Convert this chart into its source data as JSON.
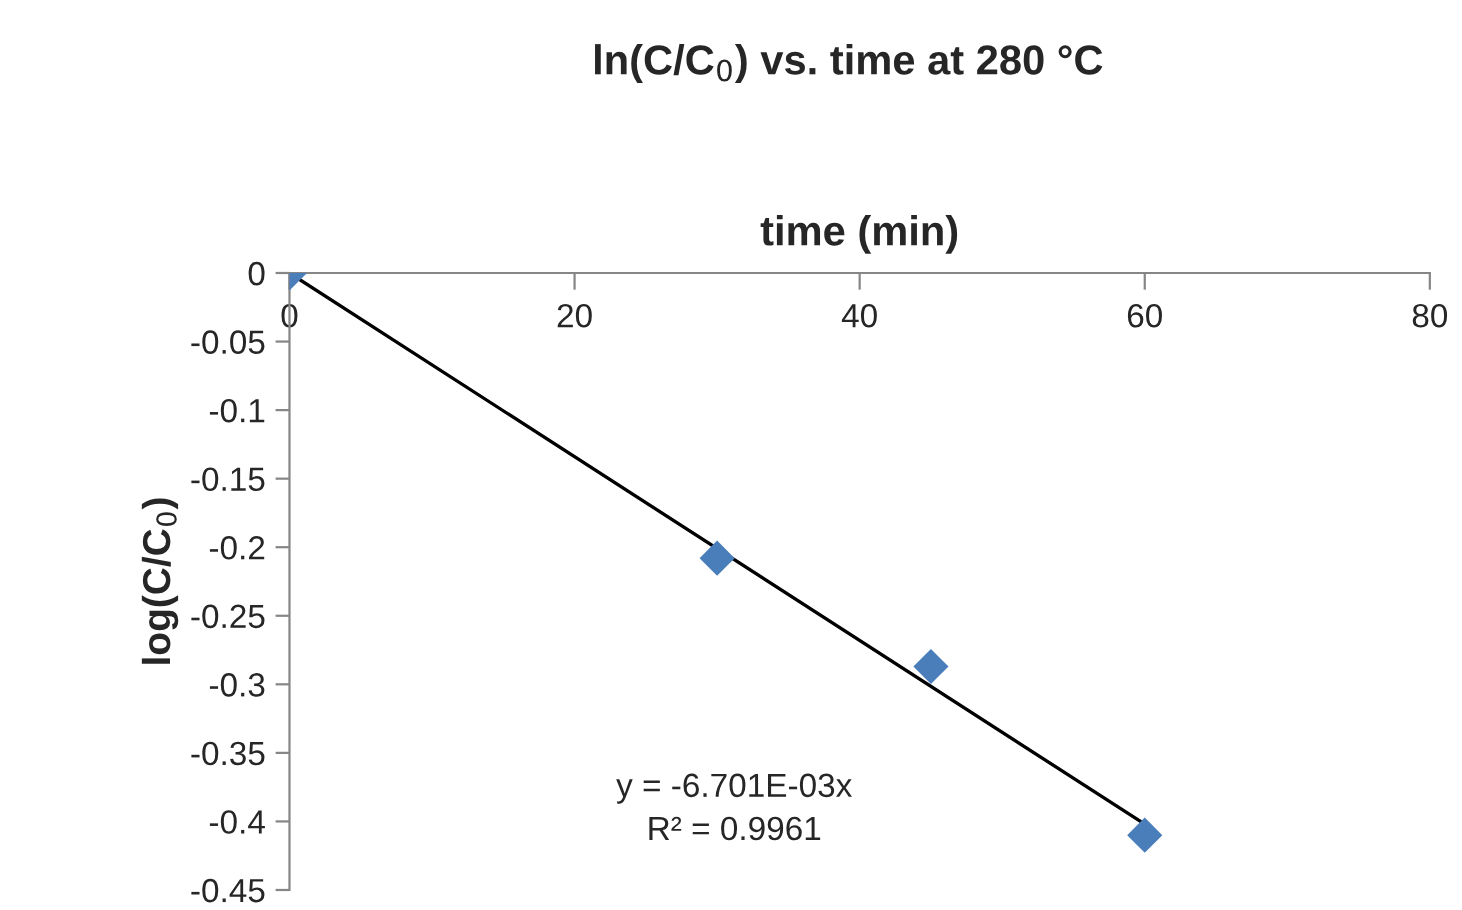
{
  "chart_data": {
    "type": "scatter",
    "title": "ln(C/C$_{0}$) vs. time at 280 °C",
    "xlabel": "time (min)",
    "ylabel": "log(C/C$_{0}$)",
    "series": [
      {
        "color": "#4a7ebb",
        "marker": "diamond",
        "x": [
          0,
          30,
          45,
          60
        ],
        "values": [
          0,
          -0.208,
          -0.287,
          -0.41
        ]
      },
      {
        "type": "line",
        "color": "#000000",
        "marker": "none",
        "line_style": "solid",
        "x": [
          0,
          60
        ],
        "values": [
          0,
          -0.402
        ]
      }
    ],
    "annotations": [
      "y = -6.701E-03x\nR² = 0.9961"
    ],
    "xlim": [
      0,
      80
    ],
    "xticks": [
      0,
      20,
      40,
      60,
      80
    ],
    "ylim": [
      -0.45,
      0
    ],
    "yticks": [
      0,
      -0.05,
      -0.1,
      -0.15,
      -0.2,
      -0.25,
      -0.3,
      -0.35,
      -0.4,
      -0.45
    ],
    "grid": false,
    "legend": false
  }
}
